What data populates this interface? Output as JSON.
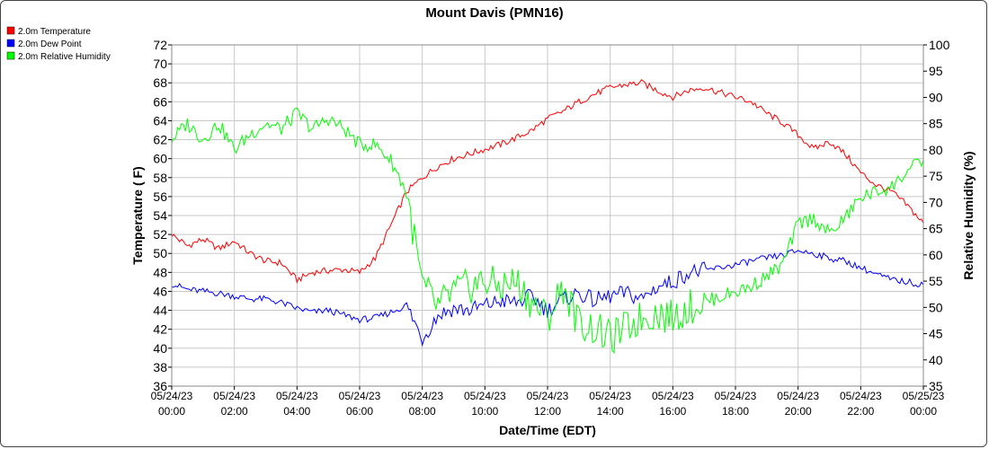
{
  "chart_data": {
    "type": "line",
    "title": "Mount Davis (PMN16)",
    "xlabel": "Date/Time (EDT)",
    "ylabel": "Temperature ( F)",
    "y2label": "Relative Humidity (%)",
    "xlim": [
      "05/24/23 00:00",
      "05/25/23 00:00"
    ],
    "ylim": [
      36,
      72
    ],
    "y2lim": [
      35,
      100
    ],
    "grid": true,
    "legend_position": "top-left",
    "x_ticks": [
      {
        "date": "05/24/23",
        "time": "00:00"
      },
      {
        "date": "05/24/23",
        "time": "02:00"
      },
      {
        "date": "05/24/23",
        "time": "04:00"
      },
      {
        "date": "05/24/23",
        "time": "06:00"
      },
      {
        "date": "05/24/23",
        "time": "08:00"
      },
      {
        "date": "05/24/23",
        "time": "10:00"
      },
      {
        "date": "05/24/23",
        "time": "12:00"
      },
      {
        "date": "05/24/23",
        "time": "14:00"
      },
      {
        "date": "05/24/23",
        "time": "16:00"
      },
      {
        "date": "05/24/23",
        "time": "18:00"
      },
      {
        "date": "05/24/23",
        "time": "20:00"
      },
      {
        "date": "05/24/23",
        "time": "22:00"
      },
      {
        "date": "05/25/23",
        "time": "00:00"
      }
    ],
    "y_ticks": [
      36,
      38,
      40,
      42,
      44,
      46,
      48,
      50,
      52,
      54,
      56,
      58,
      60,
      62,
      64,
      66,
      68,
      70,
      72
    ],
    "y2_ticks": [
      35,
      40,
      45,
      50,
      55,
      60,
      65,
      70,
      75,
      80,
      85,
      90,
      95,
      100
    ],
    "x_hours": [
      0,
      0.5,
      1,
      1.5,
      2,
      2.5,
      3,
      3.5,
      4,
      4.5,
      5,
      5.5,
      6,
      6.5,
      7,
      7.5,
      8,
      8.5,
      9,
      9.5,
      10,
      10.5,
      11,
      11.5,
      12,
      12.5,
      13,
      13.5,
      14,
      14.5,
      15,
      15.5,
      16,
      16.5,
      17,
      17.5,
      18,
      18.5,
      19,
      19.5,
      20,
      20.5,
      21,
      21.5,
      22,
      22.5,
      23,
      23.5,
      24
    ],
    "series": [
      {
        "name": "2.0m Temperature",
        "color": "#ff0000",
        "axis": "left",
        "values": [
          52.0,
          50.8,
          51.5,
          50.5,
          51.3,
          50.0,
          49.2,
          49.0,
          47.2,
          48.0,
          48.2,
          48.3,
          48.0,
          49.5,
          53.0,
          56.5,
          58.0,
          59.2,
          60.0,
          60.5,
          61.0,
          61.5,
          62.2,
          63.0,
          64.2,
          65.0,
          66.0,
          66.8,
          67.5,
          67.8,
          68.0,
          67.2,
          66.5,
          67.2,
          67.5,
          67.0,
          66.5,
          66.0,
          64.8,
          63.8,
          62.5,
          61.0,
          61.8,
          60.5,
          58.5,
          57.2,
          56.5,
          55.0,
          53.2
        ]
      },
      {
        "name": "2.0m Dew Point",
        "color": "#0000ff",
        "axis": "left",
        "values": [
          46.8,
          46.2,
          46.0,
          45.8,
          45.5,
          45.2,
          45.2,
          44.8,
          44.2,
          43.8,
          44.0,
          43.5,
          43.0,
          43.2,
          43.8,
          44.5,
          41.0,
          43.5,
          44.2,
          44.0,
          44.5,
          45.0,
          44.8,
          45.5,
          44.0,
          45.2,
          45.8,
          45.0,
          45.5,
          45.8,
          45.2,
          46.5,
          47.0,
          48.0,
          48.2,
          48.5,
          48.8,
          49.2,
          49.5,
          49.8,
          50.3,
          50.0,
          49.5,
          49.2,
          48.5,
          47.8,
          47.2,
          47.0,
          46.7
        ]
      },
      {
        "name": "2.0m Relative Humidity",
        "color": "#00ff00",
        "axis": "right",
        "values": [
          82,
          85,
          82,
          85,
          80,
          83,
          85,
          84,
          87,
          84,
          86,
          84,
          81,
          81,
          78,
          72,
          54,
          50,
          53,
          54,
          55,
          54,
          55,
          51,
          48,
          54,
          47,
          46,
          44,
          46,
          48,
          49,
          48,
          50,
          51,
          52,
          53,
          54,
          56,
          58,
          66,
          67,
          64,
          67,
          71,
          72,
          73,
          76,
          78
        ]
      }
    ]
  }
}
